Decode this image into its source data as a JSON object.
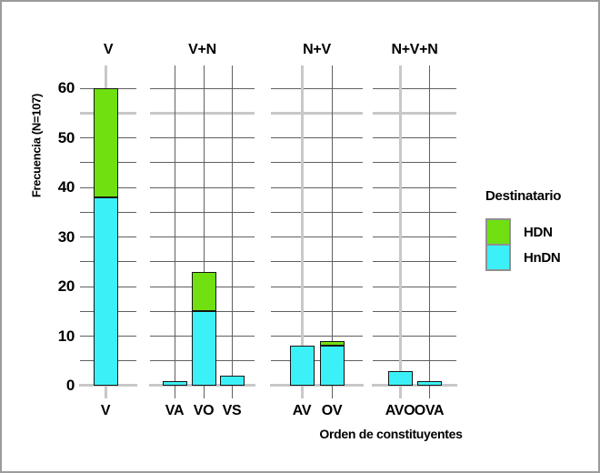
{
  "figure": {
    "background": "#ffffff",
    "border_color": "#9b9b9b"
  },
  "chart_data": {
    "type": "bar",
    "stacked": true,
    "ylabel": "Frecuencia (N=107)",
    "xlabel": "Orden de constituyentes",
    "ylim": [
      0,
      62
    ],
    "y_tick_labels": [
      0,
      10,
      20,
      30,
      40,
      50,
      60
    ],
    "y_gridline_step": 5,
    "grid": true,
    "colors": {
      "dark_gridline": "#606060",
      "light_gridline": "#c8c8c8",
      "bar_border": "#161616"
    },
    "emphasis": {
      "light_hline_value": 55,
      "light_baseline_value": 0,
      "light_categories": [
        "V",
        "AV",
        "AVO"
      ]
    },
    "series_order_bottom_to_top": [
      "HnDN",
      "HDN"
    ],
    "legend": {
      "title": "Destinatario",
      "position": "right",
      "entries": [
        {
          "label": "HDN",
          "color": "#70e010"
        },
        {
          "label": "HnDN",
          "color": "#3cf0f8"
        }
      ]
    },
    "facets": [
      {
        "label": "V",
        "categories": [
          "V"
        ],
        "HnDN": [
          38
        ],
        "HDN": [
          22
        ]
      },
      {
        "label": "V+N",
        "categories": [
          "VA",
          "VO",
          "VS"
        ],
        "HnDN": [
          1,
          15,
          2
        ],
        "HDN": [
          0,
          8,
          0
        ]
      },
      {
        "label": "N+V",
        "categories": [
          "AV",
          "OV"
        ],
        "HnDN": [
          8,
          8
        ],
        "HDN": [
          0,
          1
        ]
      },
      {
        "label": "N+V+N",
        "categories": [
          "AVO",
          "OVA"
        ],
        "HnDN": [
          3,
          1
        ],
        "HDN": [
          0,
          0
        ]
      }
    ]
  }
}
